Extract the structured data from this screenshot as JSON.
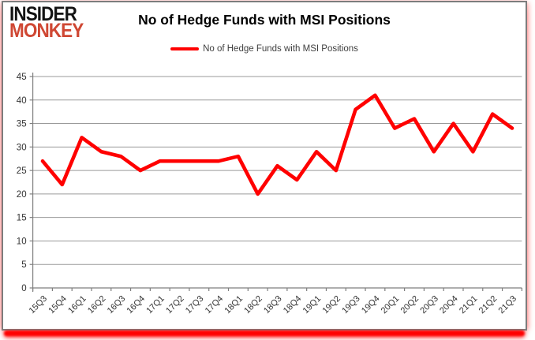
{
  "brand": {
    "line1": "INSIDER",
    "line2": "MONKEY",
    "line1_color": "#131313",
    "line2_color": "#cf4733"
  },
  "header": {
    "title": "No of Hedge Funds with MSI Positions"
  },
  "legend": {
    "label": "No of Hedge Funds with MSI Positions",
    "color": "#ff0000"
  },
  "chart_data": {
    "type": "line",
    "title": "No of Hedge Funds with MSI Positions",
    "categories": [
      "15Q3",
      "15Q4",
      "16Q1",
      "16Q2",
      "16Q3",
      "16Q4",
      "17Q1",
      "17Q2",
      "17Q3",
      "17Q4",
      "18Q1",
      "18Q2",
      "18Q3",
      "18Q4",
      "19Q1",
      "19Q2",
      "19Q3",
      "19Q4",
      "20Q1",
      "20Q2",
      "20Q3",
      "20Q4",
      "21Q1",
      "21Q2",
      "21Q3"
    ],
    "series": [
      {
        "name": "No of Hedge Funds with MSI Positions",
        "color": "#ff0000",
        "values": [
          27,
          22,
          32,
          29,
          28,
          25,
          27,
          27,
          27,
          27,
          28,
          20,
          26,
          23,
          29,
          25,
          38,
          41,
          34,
          36,
          29,
          35,
          29,
          37,
          34
        ]
      }
    ],
    "xlabel": "",
    "ylabel": "",
    "ylim": [
      0,
      45
    ],
    "yticks": [
      0,
      5,
      10,
      15,
      20,
      25,
      30,
      35,
      40,
      45
    ],
    "grid": true,
    "legend_position": "top",
    "gridline_color": "#9a9a9a",
    "axis_color": "#7f7f7f",
    "tick_label_color": "#333333"
  }
}
